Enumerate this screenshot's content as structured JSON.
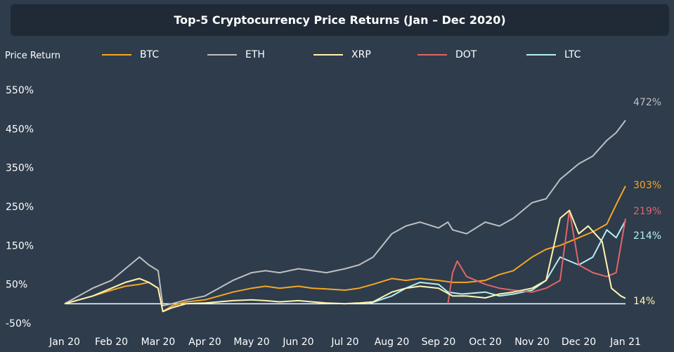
{
  "chart_data": {
    "type": "line",
    "title": "Top-5 Cryptocurrency Price Returns (Jan – Dec 2020)",
    "ylabel": "Price Return",
    "xlabel": "",
    "ylim": [
      -50,
      550
    ],
    "y_ticks": [
      "550%",
      "450%",
      "350%",
      "250%",
      "150%",
      "50%",
      "-50%"
    ],
    "y_tick_values": [
      550,
      450,
      350,
      250,
      150,
      50,
      -50
    ],
    "x_tick_labels": [
      "Jan 20",
      "Feb 20",
      "Mar 20",
      "Apr 20",
      "May 20",
      "Jun 20",
      "Jul 20",
      "Aug 20",
      "Sep 20",
      "Oct 20",
      "Nov 20",
      "Dec 20",
      "Jan 21"
    ],
    "x_range_months": [
      0,
      12
    ],
    "legend_position": "top",
    "grid": false,
    "baseline": 0,
    "series": [
      {
        "name": "BTC",
        "color": "#f5a623",
        "end_label": "303%",
        "x": [
          0,
          0.3,
          0.6,
          1,
          1.3,
          1.6,
          1.8,
          2,
          2.1,
          2.3,
          2.6,
          3,
          3.3,
          3.6,
          4,
          4.3,
          4.6,
          5,
          5.3,
          5.6,
          6,
          6.3,
          6.6,
          7,
          7.3,
          7.6,
          8,
          8.3,
          8.6,
          9,
          9.3,
          9.6,
          10,
          10.3,
          10.6,
          11,
          11.3,
          11.6,
          11.8,
          12
        ],
        "y": [
          0,
          10,
          20,
          35,
          45,
          50,
          55,
          40,
          -20,
          -5,
          5,
          10,
          20,
          30,
          40,
          45,
          40,
          45,
          40,
          38,
          35,
          40,
          50,
          65,
          60,
          65,
          60,
          55,
          55,
          60,
          75,
          85,
          120,
          140,
          150,
          170,
          185,
          205,
          255,
          303
        ]
      },
      {
        "name": "ETH",
        "color": "#bfbfbf",
        "end_label": "472%",
        "x": [
          0,
          0.3,
          0.6,
          1,
          1.3,
          1.6,
          1.8,
          2,
          2.1,
          2.3,
          2.6,
          3,
          3.3,
          3.6,
          4,
          4.3,
          4.6,
          5,
          5.3,
          5.6,
          6,
          6.3,
          6.6,
          7,
          7.3,
          7.6,
          8,
          8.2,
          8.3,
          8.6,
          9,
          9.3,
          9.6,
          10,
          10.3,
          10.6,
          11,
          11.3,
          11.6,
          11.8,
          12
        ],
        "y": [
          0,
          20,
          40,
          60,
          90,
          120,
          100,
          85,
          -5,
          0,
          10,
          20,
          40,
          60,
          80,
          85,
          80,
          90,
          85,
          80,
          90,
          100,
          120,
          180,
          200,
          210,
          195,
          210,
          190,
          180,
          210,
          200,
          220,
          260,
          270,
          320,
          360,
          380,
          420,
          440,
          472
        ]
      },
      {
        "name": "XRP",
        "color": "#fff5b0",
        "end_label": "14%",
        "x": [
          0,
          0.3,
          0.6,
          1,
          1.3,
          1.6,
          1.8,
          2,
          2.1,
          2.3,
          2.6,
          3,
          3.3,
          3.6,
          4,
          4.3,
          4.6,
          5,
          5.3,
          5.6,
          6,
          6.3,
          6.6,
          7,
          7.3,
          7.6,
          8,
          8.3,
          8.6,
          9,
          9.3,
          9.6,
          10,
          10.3,
          10.6,
          10.8,
          11,
          11.2,
          11.5,
          11.7,
          11.9,
          12
        ],
        "y": [
          0,
          10,
          20,
          40,
          55,
          65,
          55,
          40,
          -20,
          -10,
          0,
          2,
          5,
          8,
          10,
          8,
          5,
          8,
          5,
          2,
          0,
          2,
          5,
          30,
          40,
          45,
          40,
          20,
          20,
          15,
          25,
          30,
          40,
          60,
          220,
          240,
          180,
          200,
          160,
          40,
          20,
          14
        ]
      },
      {
        "name": "DOT",
        "color": "#e06666",
        "end_label": "219%",
        "x": [
          8.2,
          8.3,
          8.4,
          8.6,
          8.8,
          9,
          9.3,
          9.6,
          10,
          10.3,
          10.6,
          10.8,
          11,
          11.3,
          11.6,
          11.8,
          12
        ],
        "y": [
          0,
          80,
          110,
          70,
          60,
          50,
          40,
          35,
          30,
          40,
          60,
          240,
          100,
          80,
          70,
          80,
          219
        ]
      },
      {
        "name": "LTC",
        "color": "#b3f0f0",
        "end_label": "214%",
        "x": [
          6.5,
          7,
          7.3,
          7.6,
          8,
          8.2,
          8.5,
          9,
          9.3,
          9.6,
          10,
          10.3,
          10.6,
          10.8,
          11,
          11.3,
          11.6,
          11.8,
          12
        ],
        "y": [
          0,
          20,
          40,
          55,
          50,
          30,
          25,
          30,
          20,
          25,
          35,
          60,
          120,
          110,
          100,
          120,
          190,
          170,
          214
        ]
      }
    ]
  }
}
